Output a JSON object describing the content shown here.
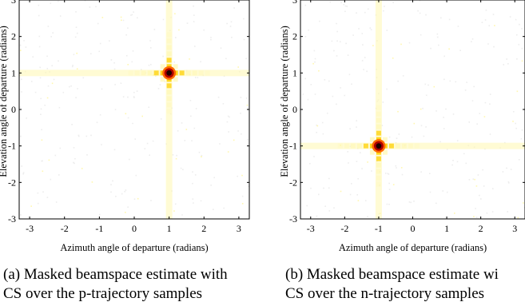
{
  "chart_data": [
    {
      "type": "heatmap",
      "panel_label": "(a)",
      "caption_line1": "(a) Masked beamspace estimate with",
      "caption_line2": "CS over the p-trajectory samples",
      "xlabel": "Azimuth angle of departure (radians)",
      "ylabel": "Elevation angle of departure (radians)",
      "xlim": [
        -3.3,
        3.3
      ],
      "ylim": [
        3.0,
        -3.0
      ],
      "y_axis_inverted": true,
      "xticks": [
        -3,
        -2,
        -1,
        0,
        1,
        2,
        3
      ],
      "yticks": [
        -3,
        -2,
        -1,
        0,
        1,
        2,
        3
      ],
      "peak": {
        "x": 1.0,
        "y": 1.0
      },
      "colormap": [
        "#ffffff",
        "#fff7b0",
        "#ffd000",
        "#ff6a00",
        "#b00000",
        "#200000"
      ],
      "grid": false
    },
    {
      "type": "heatmap",
      "panel_label": "(b)",
      "caption_line1": "(b) Masked beamspace estimate wi",
      "caption_line2": "CS over the n-trajectory samples",
      "xlabel": "Azimuth angle of departure (radians)",
      "ylabel": "Elevation angle of departure (radians)",
      "xlim": [
        -3.3,
        3.3
      ],
      "ylim": [
        3.0,
        -3.0
      ],
      "y_axis_inverted": true,
      "xticks": [
        -3,
        -2,
        -1,
        0,
        1,
        2,
        3
      ],
      "yticks": [
        -3,
        -2,
        -1,
        0,
        1,
        2,
        3
      ],
      "peak": {
        "x": -1.0,
        "y": -1.0
      },
      "colormap": [
        "#ffffff",
        "#fff7b0",
        "#ffd000",
        "#ff6a00",
        "#b00000",
        "#200000"
      ],
      "grid": false
    }
  ]
}
